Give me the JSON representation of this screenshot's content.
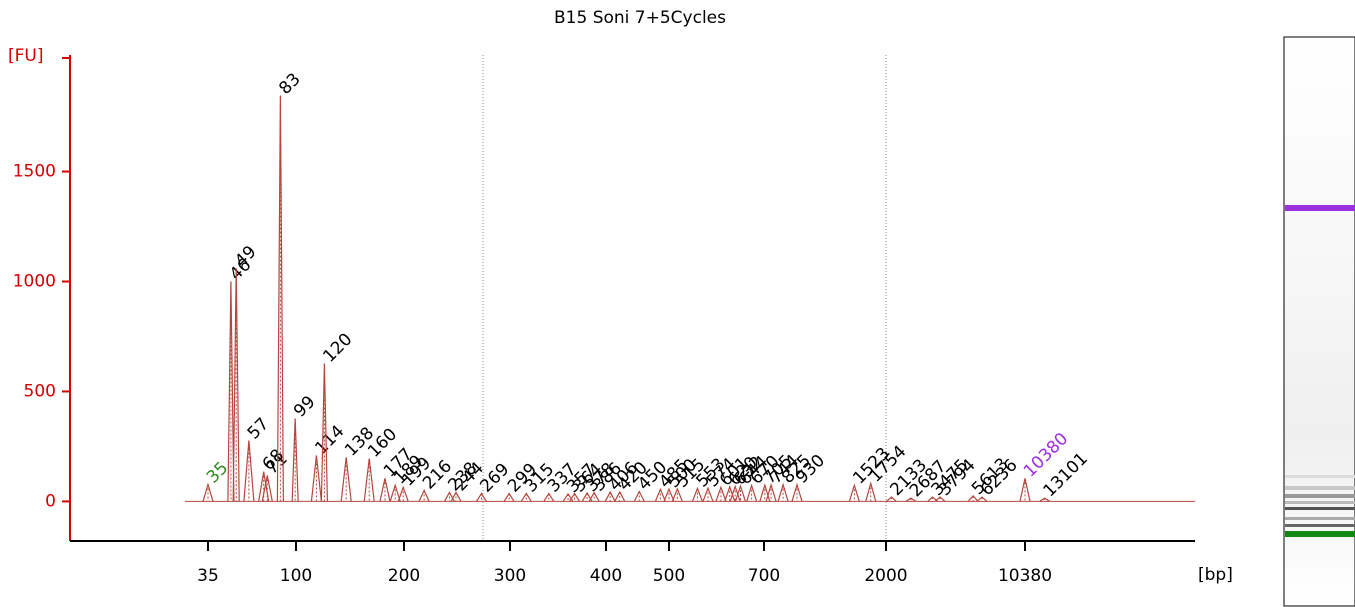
{
  "chart_data": {
    "type": "electropherogram",
    "title": "B15 Soni 7+5Cycles",
    "y_label": "[FU]",
    "x_label": "[bp]",
    "ylim": [
      -180,
      2030
    ],
    "yticks": [
      0,
      500,
      1000,
      1500
    ],
    "xticks": [
      35,
      100,
      200,
      300,
      400,
      500,
      700,
      2000,
      10380
    ],
    "color": "#b5473f",
    "axis_color": "#d40000",
    "peaks": [
      {
        "size": 35,
        "height": 77,
        "color": "#2e8b22"
      },
      {
        "size": 46,
        "height": 1000
      },
      {
        "size": 49,
        "height": 1060
      },
      {
        "size": 57,
        "height": 277
      },
      {
        "size": 68,
        "height": 135
      },
      {
        "size": 71,
        "height": 118
      },
      {
        "size": 83,
        "height": 1845
      },
      {
        "size": 99,
        "height": 377
      },
      {
        "size": 114,
        "height": 209
      },
      {
        "size": 120,
        "height": 627
      },
      {
        "size": 138,
        "height": 200
      },
      {
        "size": 160,
        "height": 195
      },
      {
        "size": 177,
        "height": 105
      },
      {
        "size": 189,
        "height": 73
      },
      {
        "size": 199,
        "height": 64
      },
      {
        "size": 216,
        "height": 50
      },
      {
        "size": 238,
        "height": 41
      },
      {
        "size": 244,
        "height": 41
      },
      {
        "size": 269,
        "height": 36
      },
      {
        "size": 299,
        "height": 36
      },
      {
        "size": 315,
        "height": 36
      },
      {
        "size": 337,
        "height": 36
      },
      {
        "size": 357,
        "height": 34
      },
      {
        "size": 364,
        "height": 36
      },
      {
        "size": 378,
        "height": 38
      },
      {
        "size": 386,
        "height": 40
      },
      {
        "size": 406,
        "height": 42
      },
      {
        "size": 420,
        "height": 43
      },
      {
        "size": 450,
        "height": 45
      },
      {
        "size": 485,
        "height": 55
      },
      {
        "size": 500,
        "height": 56
      },
      {
        "size": 515,
        "height": 57
      },
      {
        "size": 553,
        "height": 59
      },
      {
        "size": 574,
        "height": 60
      },
      {
        "size": 601,
        "height": 64
      },
      {
        "size": 620,
        "height": 66
      },
      {
        "size": 632,
        "height": 68
      },
      {
        "size": 644,
        "height": 70
      },
      {
        "size": 670,
        "height": 72
      },
      {
        "size": 705,
        "height": 74
      },
      {
        "size": 744,
        "height": 75
      },
      {
        "size": 825,
        "height": 76
      },
      {
        "size": 930,
        "height": 76
      },
      {
        "size": 1523,
        "height": 73
      },
      {
        "size": 1754,
        "height": 82
      },
      {
        "size": 2133,
        "height": 20
      },
      {
        "size": 2687,
        "height": 15
      },
      {
        "size": 3475,
        "height": 20
      },
      {
        "size": 3794,
        "height": 20
      },
      {
        "size": 5613,
        "height": 25
      },
      {
        "size": 6236,
        "height": 20
      },
      {
        "size": 10380,
        "height": 105,
        "color": "#9b30e0"
      },
      {
        "size": 13101,
        "height": 15
      }
    ]
  }
}
